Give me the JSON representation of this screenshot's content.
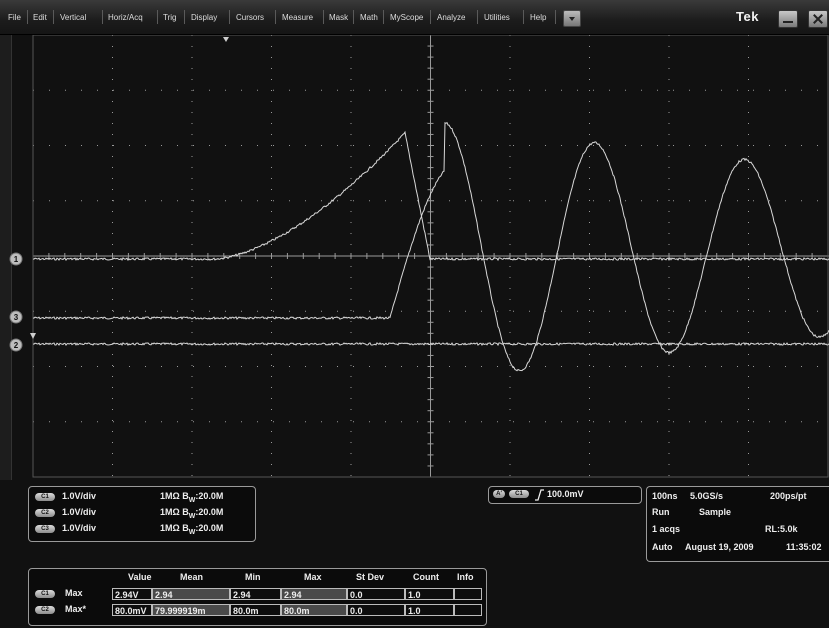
{
  "menu": {
    "items": [
      "File",
      "Edit",
      "Vertical",
      "Horiz/Acq",
      "Trig",
      "Display",
      "Cursors",
      "Measure",
      "Mask",
      "Math",
      "MyScope",
      "Analyze",
      "Utilities",
      "Help"
    ],
    "logo": "Tek"
  },
  "channels": [
    {
      "badge": "C1",
      "scale": "1.0V/div",
      "impedance": "1MΩ",
      "bw_label": "B",
      "bw_sub": "W",
      "bw_value": ":20.0M"
    },
    {
      "badge": "C2",
      "scale": "1.0V/div",
      "impedance": "1MΩ",
      "bw_label": "B",
      "bw_sub": "W",
      "bw_value": ":20.0M"
    },
    {
      "badge": "C3",
      "scale": "1.0V/div",
      "impedance": "1MΩ",
      "bw_label": "B",
      "bw_sub": "W",
      "bw_value": ":20.0M"
    }
  ],
  "trigger": {
    "mode_badge": "A'",
    "channel_badge": "C1",
    "level": "100.0mV"
  },
  "acquisition": {
    "timebase": "100ns",
    "sample_rate": "5.0GS/s",
    "resolution": "200ps/pt",
    "state": "Run",
    "mode": "Sample",
    "acqs": "1 acqs",
    "record_length": "RL:5.0k",
    "trigger_mode": "Auto",
    "date": "August 19, 2009",
    "time": "11:35:02"
  },
  "waveform_markers": {
    "ch1": "1",
    "ch2": "2",
    "ch3": "3"
  },
  "measurements": {
    "headers": [
      "Value",
      "Mean",
      "Min",
      "Max",
      "St Dev",
      "Count",
      "Info"
    ],
    "rows": [
      {
        "badge": "C1",
        "name": "Max",
        "cells": [
          "2.94V",
          "2.94",
          "2.94",
          "2.94",
          "0.0",
          "1.0",
          ""
        ]
      },
      {
        "badge": "C2",
        "name": "Max*",
        "cells": [
          "80.0mV",
          "79.999919m",
          "80.0m",
          "80.0m",
          "0.0",
          "1.0",
          ""
        ]
      }
    ]
  },
  "colors": {
    "trace": "#d8d8d8",
    "grid": "#9a9a9a",
    "background": "#000000"
  }
}
